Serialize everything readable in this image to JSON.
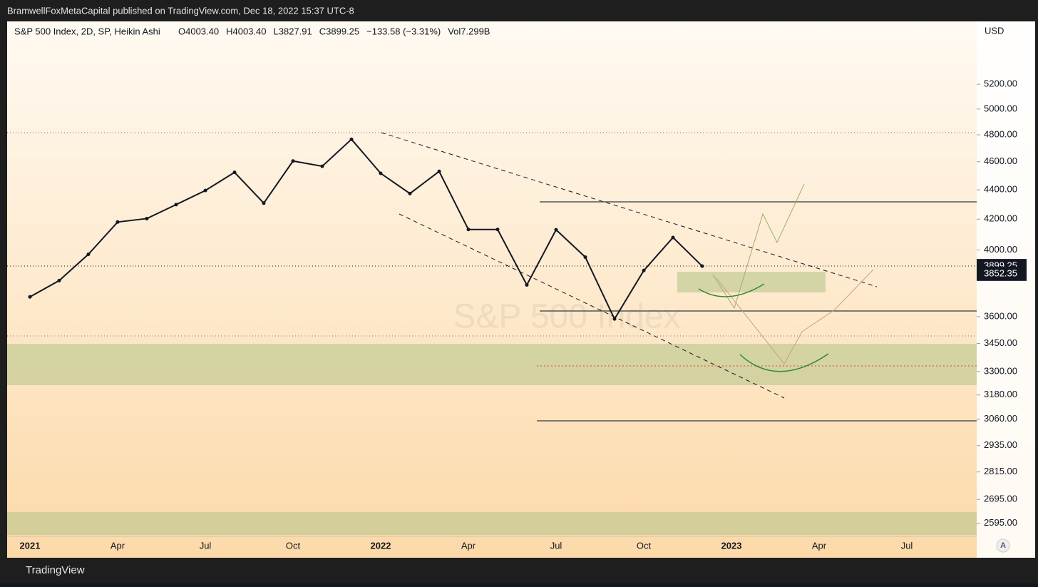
{
  "header": {
    "publisher_line": "BramwellFoxMetaCapital published on TradingView.com, Dec 18, 2022 15:37 UTC-8"
  },
  "footer": {
    "brand": "TradingView"
  },
  "chart_data": {
    "type": "line",
    "title": "S&P 500 Index, 2D, SP, Heikin Ashi",
    "legend_items": [
      "O4003.40",
      "H4003.40",
      "L3827.91",
      "C3899.25",
      "−133.58 (−3.31%)",
      "Vol7.299B"
    ],
    "watermark": "S&P 500 Index",
    "currency": "USD",
    "scale_button": "A",
    "categories": [
      "2021",
      null,
      null,
      "Apr",
      null,
      null,
      "Jul",
      null,
      null,
      "Oct",
      null,
      null,
      "2022",
      null,
      null,
      "Apr",
      null,
      null,
      "Jul",
      null,
      null,
      "Oct",
      null,
      null,
      "2023",
      null,
      null,
      "Apr",
      null,
      null,
      "Jul"
    ],
    "values": [
      3714,
      3811,
      3973,
      4181,
      4204,
      4298,
      4395,
      4523,
      4308,
      4605,
      4567,
      4766,
      4516,
      4374,
      4530,
      4132,
      4132,
      3785,
      4130,
      3955,
      3586,
      3872,
      4080,
      3899,
      null,
      null,
      null,
      null,
      null,
      null,
      null
    ],
    "color": "#131722",
    "log_scale": true,
    "ylim": [
      2463,
      5744
    ],
    "yticks": [
      {
        "value": 2595,
        "label": "2595.00"
      },
      {
        "value": 2695,
        "label": "2695.00"
      },
      {
        "value": 2815,
        "label": "2815.00"
      },
      {
        "value": 2935,
        "label": "2935.00"
      },
      {
        "value": 3060,
        "label": "3060.00"
      },
      {
        "value": 3180,
        "label": "3180.00"
      },
      {
        "value": 3300,
        "label": "3300.00"
      },
      {
        "value": 3450,
        "label": "3450.00"
      },
      {
        "value": 3600,
        "label": "3600.00"
      },
      {
        "value": 4000,
        "label": "4000.00"
      },
      {
        "value": 4200,
        "label": "4200.00"
      },
      {
        "value": 4400,
        "label": "4400.00"
      },
      {
        "value": 4600,
        "label": "4600.00"
      },
      {
        "value": 4800,
        "label": "4800.00"
      },
      {
        "value": 5000,
        "label": "5000.00"
      },
      {
        "value": 5200,
        "label": "5200.00"
      }
    ],
    "price_labels": [
      3899.25,
      3852.35
    ]
  }
}
